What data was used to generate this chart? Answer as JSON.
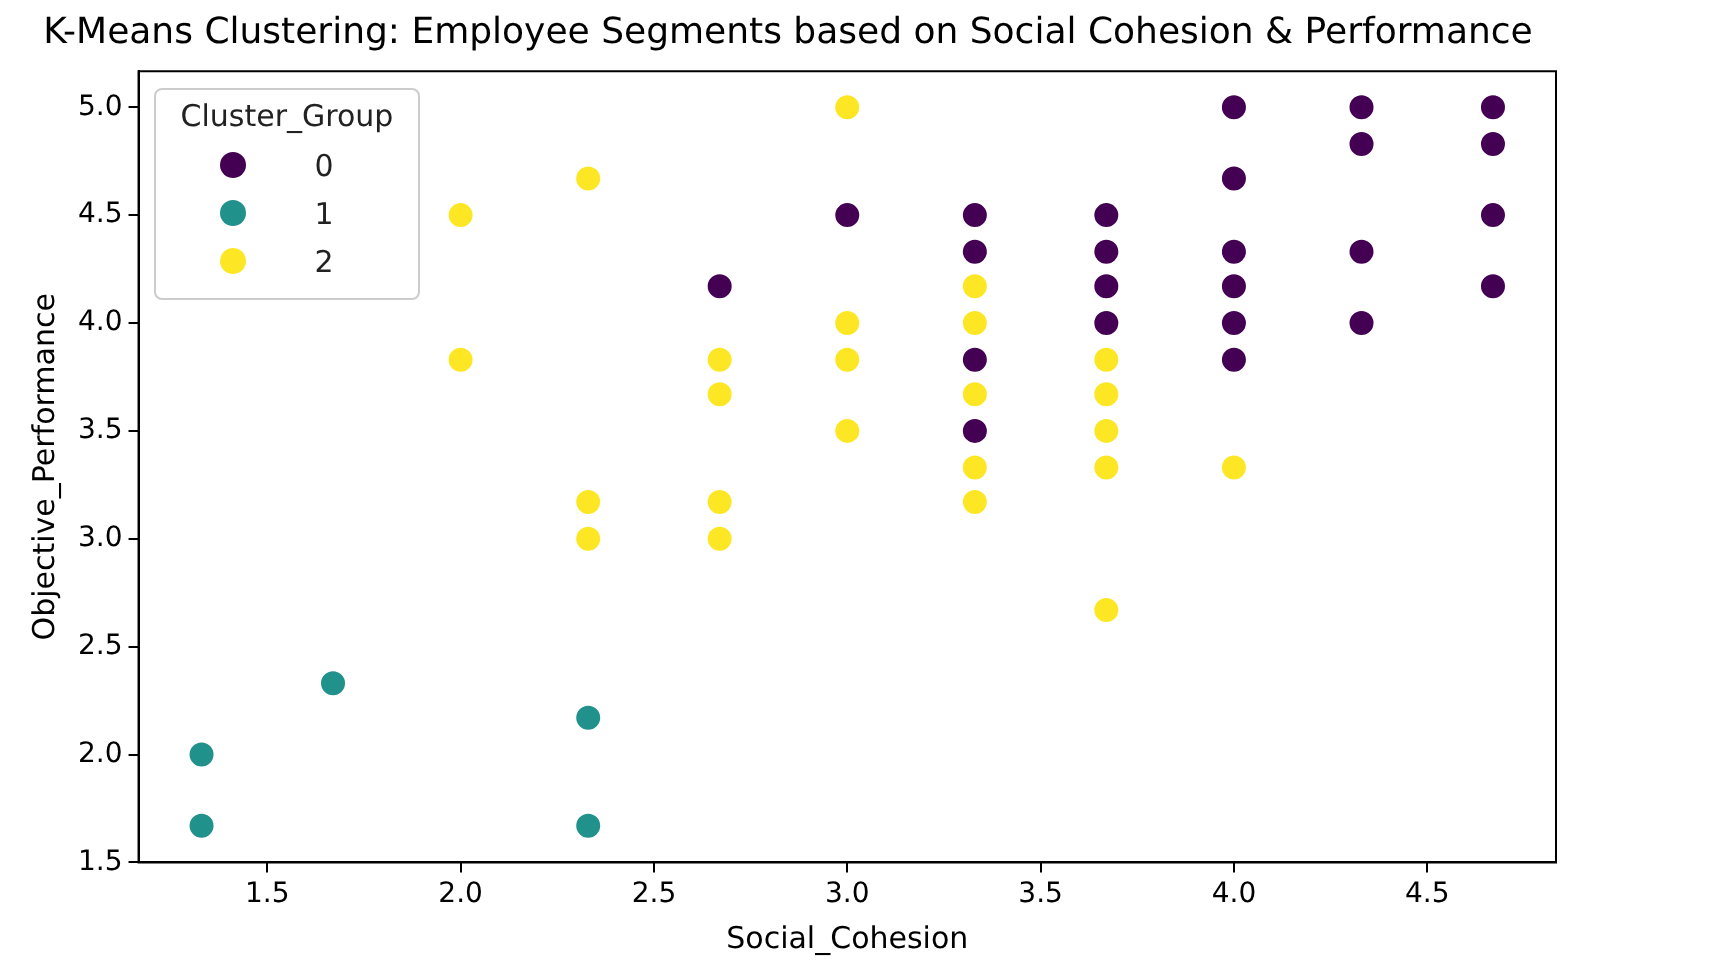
{
  "chart_data": {
    "type": "scatter",
    "title": "K-Means Clustering: Employee Segments based on Social Cohesion & Performance",
    "xlabel": "Social_Cohesion",
    "ylabel": "Objective_Performance",
    "legend_title": "Cluster_Group",
    "legend": "top left",
    "marker": "circle",
    "grid": false,
    "xlim": [
      1.167,
      4.833
    ],
    "xticks": [
      {
        "value": 1.5,
        "label": "1.5"
      },
      {
        "value": 2,
        "label": "2.0"
      },
      {
        "value": 2.5,
        "label": "2.5"
      },
      {
        "value": 3,
        "label": "3.0"
      },
      {
        "value": 3.5,
        "label": "3.5"
      },
      {
        "value": 4,
        "label": "4.0"
      },
      {
        "value": 4.5,
        "label": "4.5"
      }
    ],
    "ylim": [
      1.5,
      5.167
    ],
    "yticks": [
      {
        "value": 1.5,
        "label": "1.5"
      },
      {
        "value": 2,
        "label": "2.0"
      },
      {
        "value": 2.5,
        "label": "2.5"
      },
      {
        "value": 3,
        "label": "3.0"
      },
      {
        "value": 3.5,
        "label": "3.5"
      },
      {
        "value": 4,
        "label": "4.0"
      },
      {
        "value": 4.5,
        "label": "4.5"
      },
      {
        "value": 5,
        "label": "5.0"
      }
    ],
    "series": [
      {
        "name": "0",
        "color": "#440154",
        "x": [
          2.67,
          3,
          3.33,
          3.33,
          3.33,
          3.33,
          3.67,
          3.67,
          3.67,
          3.67,
          4,
          4,
          4,
          4,
          4,
          4,
          4.33,
          4.33,
          4.33,
          4.33,
          4.67,
          4.67,
          4.67,
          4.67
        ],
        "values": [
          4.17,
          4.5,
          4.5,
          4.33,
          3.83,
          3.5,
          4.5,
          4.33,
          4.17,
          4,
          5,
          4.67,
          4.33,
          4.17,
          4,
          3.83,
          5,
          4.83,
          4.33,
          4,
          5,
          4.83,
          4.5,
          4.17
        ]
      },
      {
        "name": "1",
        "color": "#21918c",
        "x": [
          1.33,
          1.33,
          1.67,
          2.33,
          2.33
        ],
        "values": [
          2,
          1.67,
          2.33,
          2.17,
          1.67
        ]
      },
      {
        "name": "2",
        "color": "#fde725",
        "x": [
          2,
          2,
          2.33,
          2.33,
          2.33,
          2.67,
          2.67,
          2.67,
          2.67,
          3,
          3,
          3,
          3,
          3.33,
          3.33,
          3.33,
          3.33,
          3.33,
          3.67,
          3.67,
          3.67,
          3.67,
          3.67,
          4
        ],
        "values": [
          4.5,
          3.83,
          4.67,
          3.17,
          3,
          3.83,
          3.67,
          3.17,
          3,
          5,
          4,
          3.83,
          3.5,
          4.17,
          4,
          3.67,
          3.33,
          3.17,
          3.83,
          3.67,
          3.5,
          3.33,
          2.67,
          3.33
        ]
      }
    ]
  }
}
